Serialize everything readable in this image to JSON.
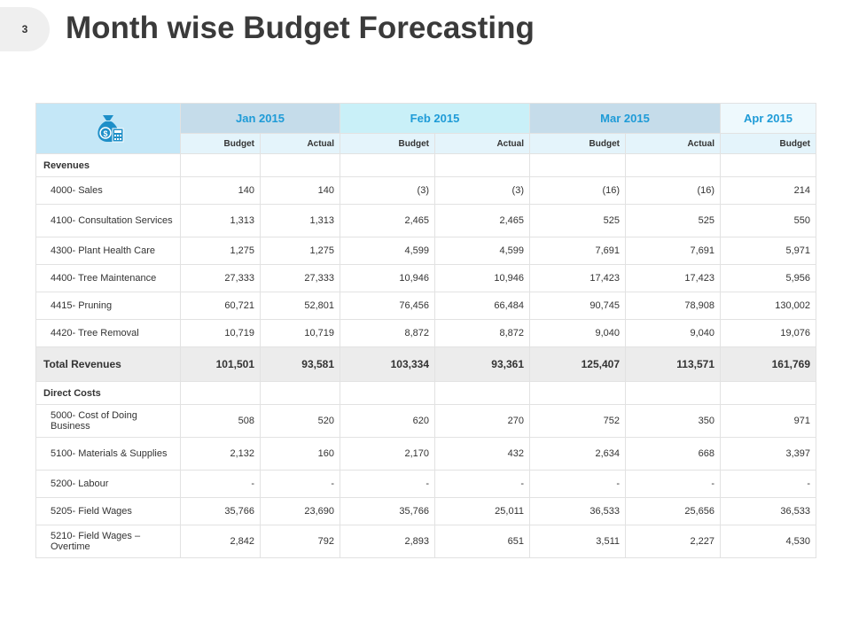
{
  "page_number": "3",
  "title": "Month wise Budget Forecasting",
  "table": {
    "months": [
      "Jan 2015",
      "Feb 2015",
      "Mar 2015",
      "Apr 2015"
    ],
    "subheaders": [
      "Budget",
      "Actual",
      "Budget",
      "Actual",
      "Budget",
      "Actual",
      "Budget"
    ],
    "sections": [
      {
        "heading": "Revenues",
        "rows": [
          {
            "label": "4000- Sales",
            "cells": [
              "140",
              "140",
              "(3)",
              "(3)",
              "(16)",
              "(16)",
              "214"
            ]
          },
          {
            "label": "4100- Consultation Services",
            "cells": [
              "1,313",
              "1,313",
              "2,465",
              "2,465",
              "525",
              "525",
              "550"
            ]
          },
          {
            "label": "4300- Plant Health Care",
            "cells": [
              "1,275",
              "1,275",
              "4,599",
              "4,599",
              "7,691",
              "7,691",
              "5,971"
            ]
          },
          {
            "label": "4400- Tree Maintenance",
            "cells": [
              "27,333",
              "27,333",
              "10,946",
              "10,946",
              "17,423",
              "17,423",
              "5,956"
            ]
          },
          {
            "label": "4415- Pruning",
            "cells": [
              "60,721",
              "52,801",
              "76,456",
              "66,484",
              "90,745",
              "78,908",
              "130,002"
            ]
          },
          {
            "label": "4420- Tree Removal",
            "cells": [
              "10,719",
              "10,719",
              "8,872",
              "8,872",
              "9,040",
              "9,040",
              "19,076"
            ]
          }
        ],
        "total": {
          "label": "Total Revenues",
          "cells": [
            "101,501",
            "93,581",
            "103,334",
            "93,361",
            "125,407",
            "113,571",
            "161,769"
          ]
        }
      },
      {
        "heading": "Direct Costs",
        "rows": [
          {
            "label": "5000- Cost of Doing Business",
            "cells": [
              "508",
              "520",
              "620",
              "270",
              "752",
              "350",
              "971"
            ]
          },
          {
            "label": "5100- Materials & Supplies",
            "cells": [
              "2,132",
              "160",
              "2,170",
              "432",
              "2,634",
              "668",
              "3,397"
            ]
          },
          {
            "label": "5200- Labour",
            "cells": [
              "-",
              "-",
              "-",
              "-",
              "-",
              "-",
              "-"
            ]
          },
          {
            "label": "5205- Field Wages",
            "cells": [
              "35,766",
              "23,690",
              "35,766",
              "25,011",
              "36,533",
              "25,656",
              "36,533"
            ]
          },
          {
            "label": "5210- Field Wages – Overtime",
            "cells": [
              "2,842",
              "792",
              "2,893",
              "651",
              "3,511",
              "2,227",
              "4,530"
            ]
          }
        ]
      }
    ]
  }
}
